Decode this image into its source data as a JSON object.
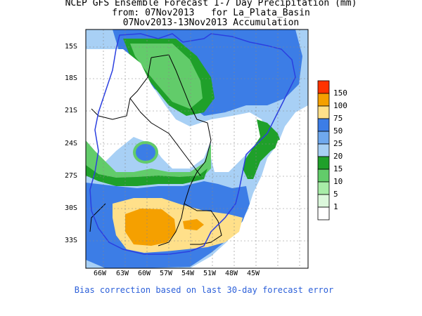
{
  "title": {
    "line1": "NCEP GFS Ensemble Forecast 1-7 Day Precipitation (mm)",
    "line2": "from: 07Nov2013   for La_Plata_Basin",
    "line3": "07Nov2013-13Nov2013 Accumulation"
  },
  "lat_labels": [
    "15S",
    "18S",
    "21S",
    "24S",
    "27S",
    "30S",
    "33S"
  ],
  "lon_labels": [
    "66W",
    "63W",
    "60W",
    "57W",
    "54W",
    "51W",
    "48W",
    "45W"
  ],
  "colorbar": {
    "labels": [
      "150",
      "100",
      "75",
      "50",
      "25",
      "20",
      "15",
      "10",
      "5",
      "1"
    ],
    "colors": [
      "#ff3300",
      "#f5a000",
      "#ffe08a",
      "#3c7de6",
      "#6fa8ee",
      "#a8d0f5",
      "#1fa02a",
      "#62cc6a",
      "#a8eca8",
      "#dcf8dc",
      "#ffffff"
    ]
  },
  "footer": "Bias correction based on last 30-day forecast error"
}
